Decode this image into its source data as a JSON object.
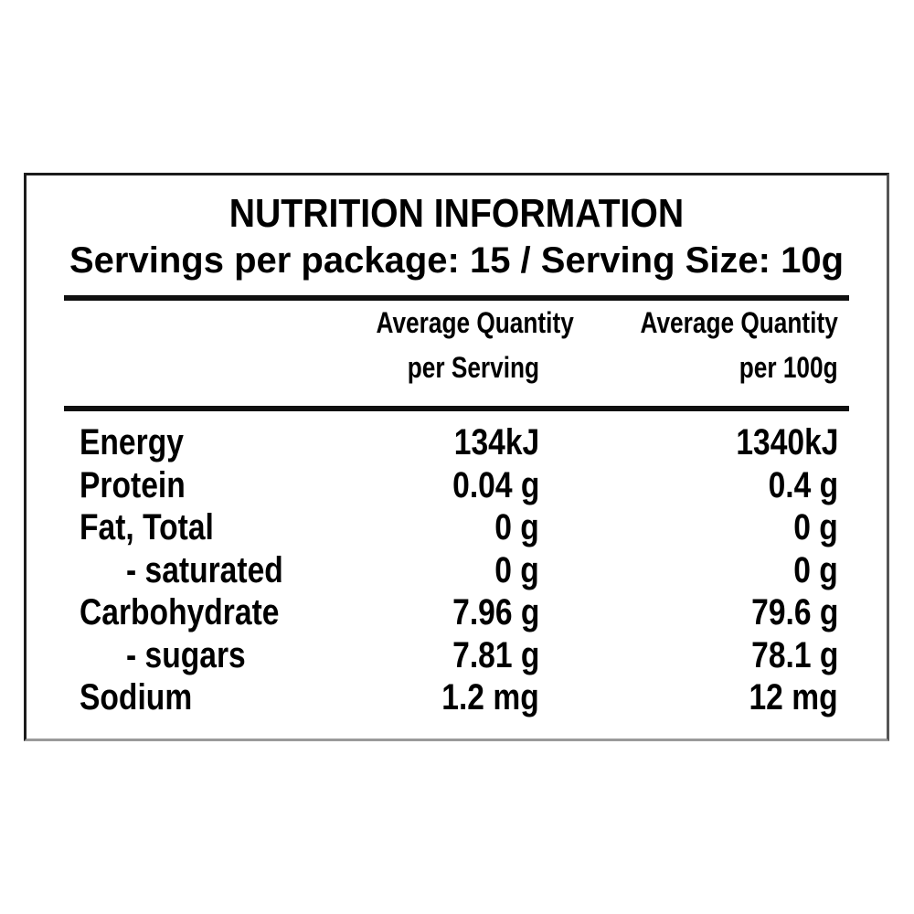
{
  "panel": {
    "title": "NUTRITION INFORMATION",
    "subtitle": "Servings per package: 15 / Serving Size: 10g",
    "columns": {
      "serving": {
        "line1": "Average Quantity",
        "line2": "per Serving"
      },
      "per100g": {
        "line1": "Average Quantity",
        "line2": "per 100g"
      }
    },
    "rows": [
      {
        "name": "Energy",
        "per_serving": "134kJ",
        "per_100g": "1340kJ",
        "indent": false
      },
      {
        "name": "Protein",
        "per_serving": "0.04 g",
        "per_100g": "0.4 g",
        "indent": false
      },
      {
        "name": "Fat, Total",
        "per_serving": "0 g",
        "per_100g": "0 g",
        "indent": false
      },
      {
        "name": "- saturated",
        "per_serving": "0 g",
        "per_100g": "0 g",
        "indent": true
      },
      {
        "name": "Carbohydrate",
        "per_serving": "7.96 g",
        "per_100g": "79.6 g",
        "indent": false
      },
      {
        "name": "- sugars",
        "per_serving": "7.81 g",
        "per_100g": "78.1 g",
        "indent": true
      },
      {
        "name": "Sodium",
        "per_serving": "1.2 mg",
        "per_100g": "12 mg",
        "indent": false
      }
    ],
    "colors": {
      "text": "#000000",
      "rule": "#101010",
      "border": "#1c1c1c",
      "background": "#ffffff"
    }
  }
}
